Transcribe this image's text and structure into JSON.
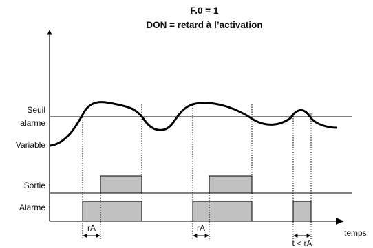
{
  "title_line1": "F.0 = 1",
  "title_line2": "DON = retard à l’activation",
  "labels": {
    "seuil": "Seuil",
    "alarme_line": "alarme",
    "variable": "Variable",
    "sortie": "Sortie",
    "alarme_row": "Alarme",
    "temps": "temps",
    "ra_1": "rA",
    "ra_2": "rA",
    "t_lt_ra": "t < rA"
  },
  "colors": {
    "pulse_fill": "#c0c0c0",
    "line": "#000000"
  }
}
